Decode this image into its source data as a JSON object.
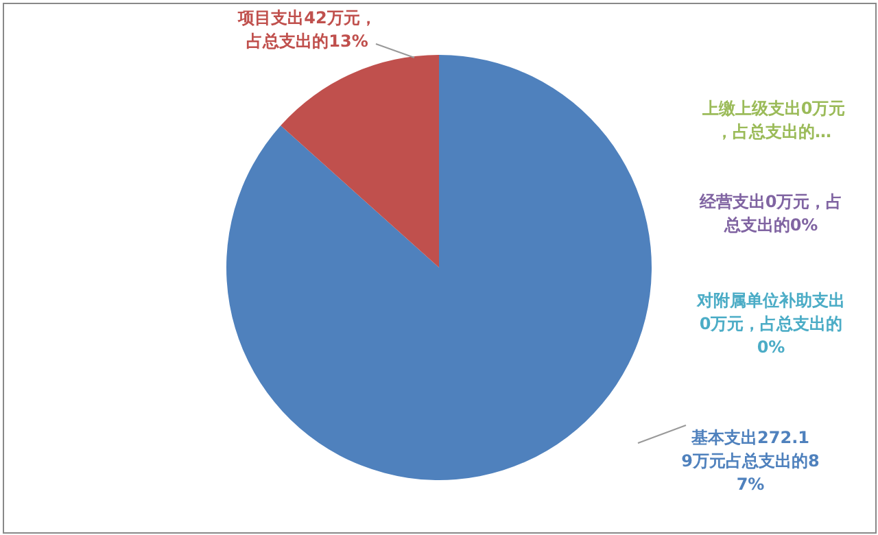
{
  "chart_data": {
    "type": "pie",
    "categories": [
      "基本支出272.19万元占总支出的87%",
      "上缴上级支出0万元，占总支出的…",
      "经营支出0万元，占总支出的0%",
      "对附属单位补助支出0万元，占总支出的0%",
      "项目支出42万元，占总支出的13%"
    ],
    "values": [
      272.19,
      0,
      0,
      0,
      42
    ],
    "colors": [
      "#4f81bd",
      "#9bbb59",
      "#8064a2",
      "#4bacc6",
      "#c0504d"
    ],
    "legend": false
  }
}
